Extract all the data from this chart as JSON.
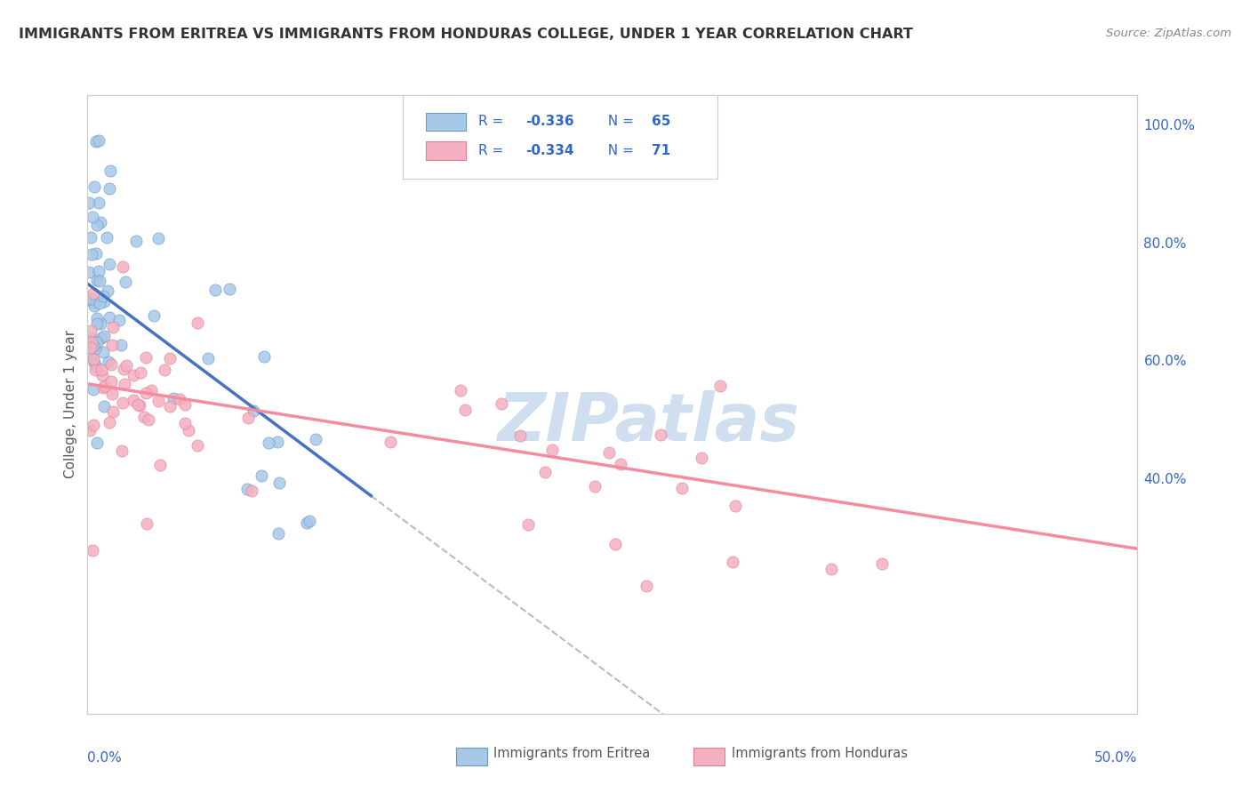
{
  "title": "IMMIGRANTS FROM ERITREA VS IMMIGRANTS FROM HONDURAS COLLEGE, UNDER 1 YEAR CORRELATION CHART",
  "source": "Source: ZipAtlas.com",
  "ylabel": "College, Under 1 year",
  "right_yticks_vals": [
    1.0,
    0.8,
    0.6,
    0.4
  ],
  "right_yticks_labels": [
    "100.0%",
    "80.0%",
    "60.0%",
    "40.0%"
  ],
  "legend_r_eritrea": "-0.336",
  "legend_n_eritrea": "65",
  "legend_r_honduras": "-0.334",
  "legend_n_honduras": "71",
  "color_eritrea_fill": "#a8c8e8",
  "color_eritrea_edge": "#6699cc",
  "color_eritrea_line": "#4472C4",
  "color_honduras_fill": "#f4b0c0",
  "color_honduras_edge": "#e08090",
  "color_honduras_line": "#F48CA0",
  "color_dashed": "#bbbbbb",
  "legend_text_color": "#3366cc",
  "watermark_color": "#d0dff0",
  "background_color": "#ffffff",
  "grid_color": "#cccccc",
  "xlim": [
    0.0,
    0.5
  ],
  "ylim": [
    0.0,
    1.05
  ],
  "title_color": "#333333",
  "source_color": "#888888",
  "label_color": "#3366cc"
}
